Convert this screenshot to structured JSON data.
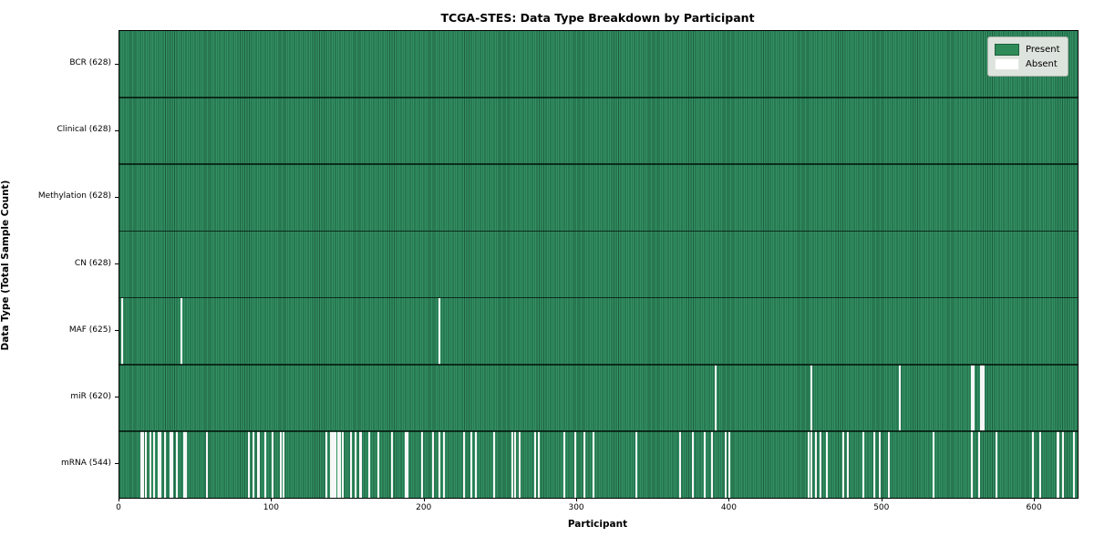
{
  "title": "TCGA-STES: Data Type Breakdown by Participant",
  "chart_data": {
    "type": "heatmap",
    "title": "TCGA-STES: Data Type Breakdown by Participant",
    "xlabel": "Participant",
    "ylabel": "Data Type (Total Sample Count)",
    "n_participants": 628,
    "x_ticks": [
      0,
      100,
      200,
      300,
      400,
      500,
      600
    ],
    "grid": false,
    "legend_position": "upper right",
    "legend": [
      {
        "label": "Present",
        "color": "#2e8b57"
      },
      {
        "label": "Absent",
        "color": "#ffffff"
      }
    ],
    "colors": {
      "present": "#2e8b57",
      "present_edge": "#1e5e3e",
      "absent": "#f7f7f7",
      "legend_bg": "#dde3dd"
    },
    "rows": [
      {
        "label": "BCR (628)",
        "data_type": "BCR",
        "present_count": 628,
        "absent_participants": []
      },
      {
        "label": "Clinical (628)",
        "data_type": "Clinical",
        "present_count": 628,
        "absent_participants": []
      },
      {
        "label": "Methylation (628)",
        "data_type": "Methylation",
        "present_count": 628,
        "absent_participants": []
      },
      {
        "label": "CN (628)",
        "data_type": "CN",
        "present_count": 628,
        "absent_participants": []
      },
      {
        "label": "MAF (625)",
        "data_type": "MAF",
        "present_count": 625,
        "absent_participants": [
          1,
          40,
          209
        ]
      },
      {
        "label": "miR (620)",
        "data_type": "miR",
        "present_count": 620,
        "absent_participants": [
          390,
          453,
          511,
          558,
          559,
          564,
          565,
          566
        ]
      },
      {
        "label": "mRNA (544)",
        "data_type": "mRNA",
        "present_count": 544,
        "absent_participants": [
          14,
          15,
          17,
          20,
          22,
          25,
          26,
          29,
          33,
          34,
          37,
          42,
          43,
          57,
          84,
          87,
          90,
          91,
          95,
          100,
          105,
          107,
          135,
          138,
          139,
          140,
          141,
          143,
          144,
          146,
          151,
          154,
          157,
          158,
          163,
          169,
          178,
          187,
          188,
          198,
          205,
          209,
          212,
          225,
          230,
          233,
          245,
          257,
          259,
          262,
          272,
          274,
          291,
          298,
          304,
          310,
          338,
          367,
          375,
          383,
          388,
          397,
          399,
          451,
          453,
          456,
          459,
          463,
          474,
          477,
          487,
          494,
          498,
          504,
          533,
          558,
          563,
          574,
          598,
          603,
          614,
          615,
          618,
          625
        ]
      }
    ]
  }
}
